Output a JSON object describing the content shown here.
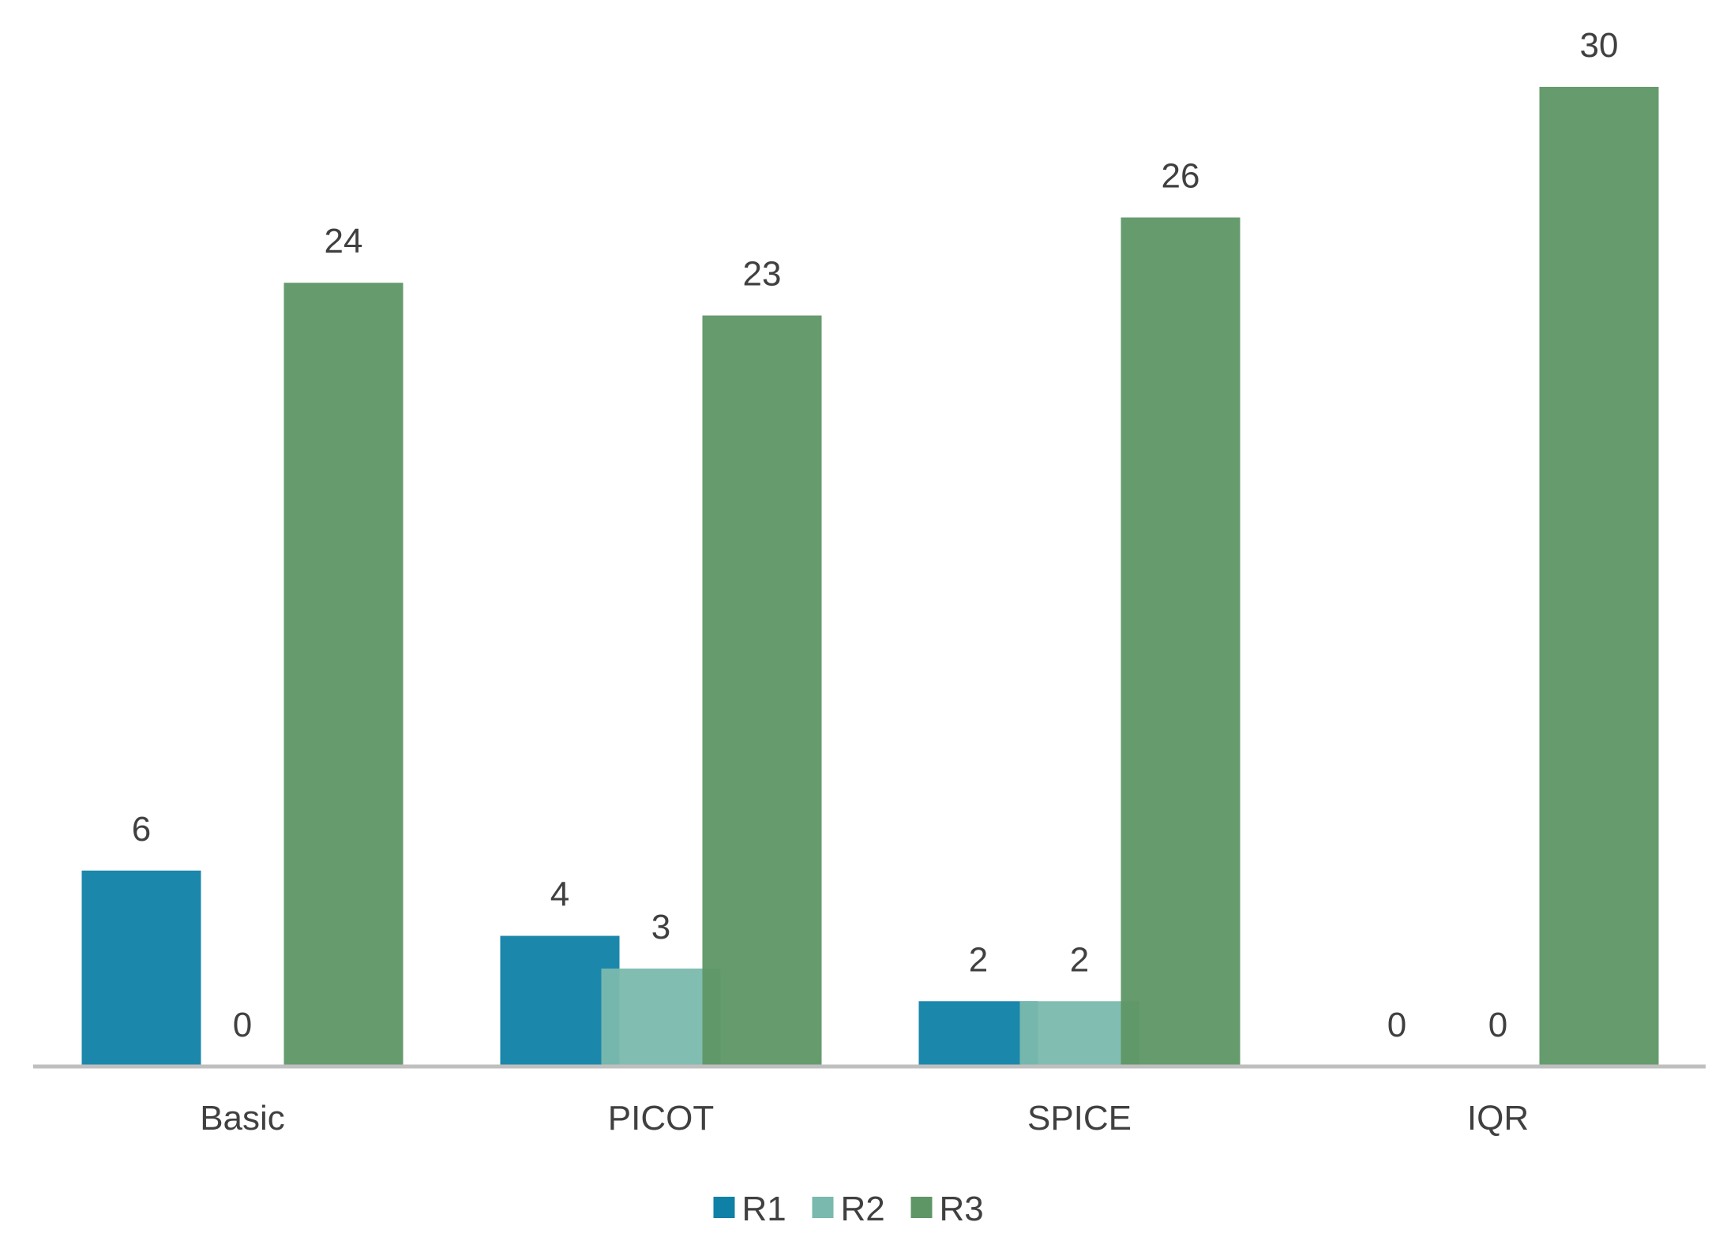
{
  "chart_data": {
    "type": "bar",
    "categories": [
      "Basic",
      "PICOT",
      "SPICE",
      "IQR"
    ],
    "series": [
      {
        "name": "R1",
        "values": [
          6,
          4,
          2,
          0
        ],
        "color": "#0f81a6"
      },
      {
        "name": "R2",
        "values": [
          0,
          3,
          2,
          0
        ],
        "color": "#7ab9ad"
      },
      {
        "name": "R3",
        "values": [
          24,
          23,
          26,
          30
        ],
        "color": "#5e9665"
      }
    ],
    "ylim": [
      0,
      30
    ],
    "grid": false,
    "legend_position": "bottom",
    "data_labels": true,
    "axis_color": "#bfbfbf"
  }
}
